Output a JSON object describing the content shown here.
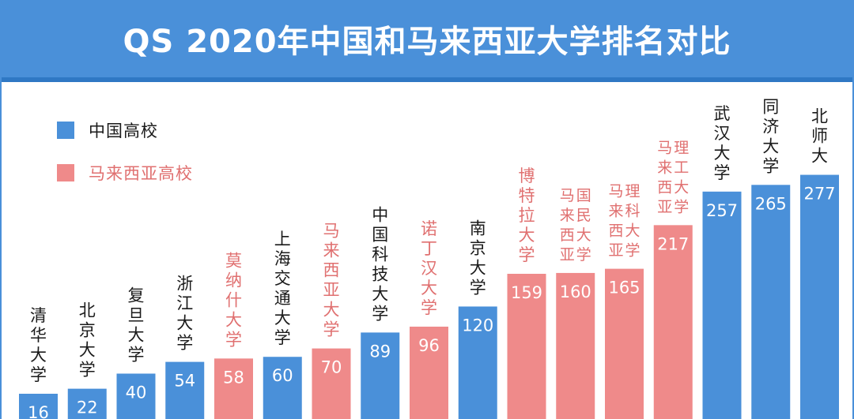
{
  "colors": {
    "china": "#4a90d9",
    "malaysia": "#ef8a8a",
    "label_china": "#1a1a1a",
    "label_malaysia": "#e07070"
  },
  "chart_data": {
    "type": "bar",
    "title": "QS 2020年中国和马来西亚大学排名对比",
    "series": [
      {
        "name": "中国高校",
        "key": "china"
      },
      {
        "name": "马来西亚高校",
        "key": "malaysia"
      }
    ],
    "legend_position": "top-left",
    "grid": false,
    "categories": [
      {
        "name": "清华大学",
        "value": 16,
        "group": "china"
      },
      {
        "name": "北京大学",
        "value": 22,
        "group": "china"
      },
      {
        "name": "复旦大学",
        "value": 40,
        "group": "china"
      },
      {
        "name": "浙江大学",
        "value": 54,
        "group": "china"
      },
      {
        "name": "莫纳什大学",
        "value": 58,
        "group": "malaysia"
      },
      {
        "name": "上海交通大学",
        "value": 60,
        "group": "china"
      },
      {
        "name": "马来西亚大学",
        "value": 70,
        "group": "malaysia"
      },
      {
        "name": "中国科技大学",
        "value": 89,
        "group": "china"
      },
      {
        "name": "诺丁汉大学",
        "value": 96,
        "group": "malaysia"
      },
      {
        "name": "南京大学",
        "value": 120,
        "group": "china"
      },
      {
        "name": "博特拉大学",
        "value": 159,
        "group": "malaysia"
      },
      {
        "name": "马来西亚国民大学",
        "value": 160,
        "group": "malaysia"
      },
      {
        "name": "马来西亚理科大学",
        "value": 165,
        "group": "malaysia"
      },
      {
        "name": "马来西亚理工大学",
        "value": 217,
        "group": "malaysia"
      },
      {
        "name": "武汉大学",
        "value": 257,
        "group": "china"
      },
      {
        "name": "同济大学",
        "value": 265,
        "group": "china"
      },
      {
        "name": "北师大",
        "value": 277,
        "group": "china"
      }
    ]
  }
}
